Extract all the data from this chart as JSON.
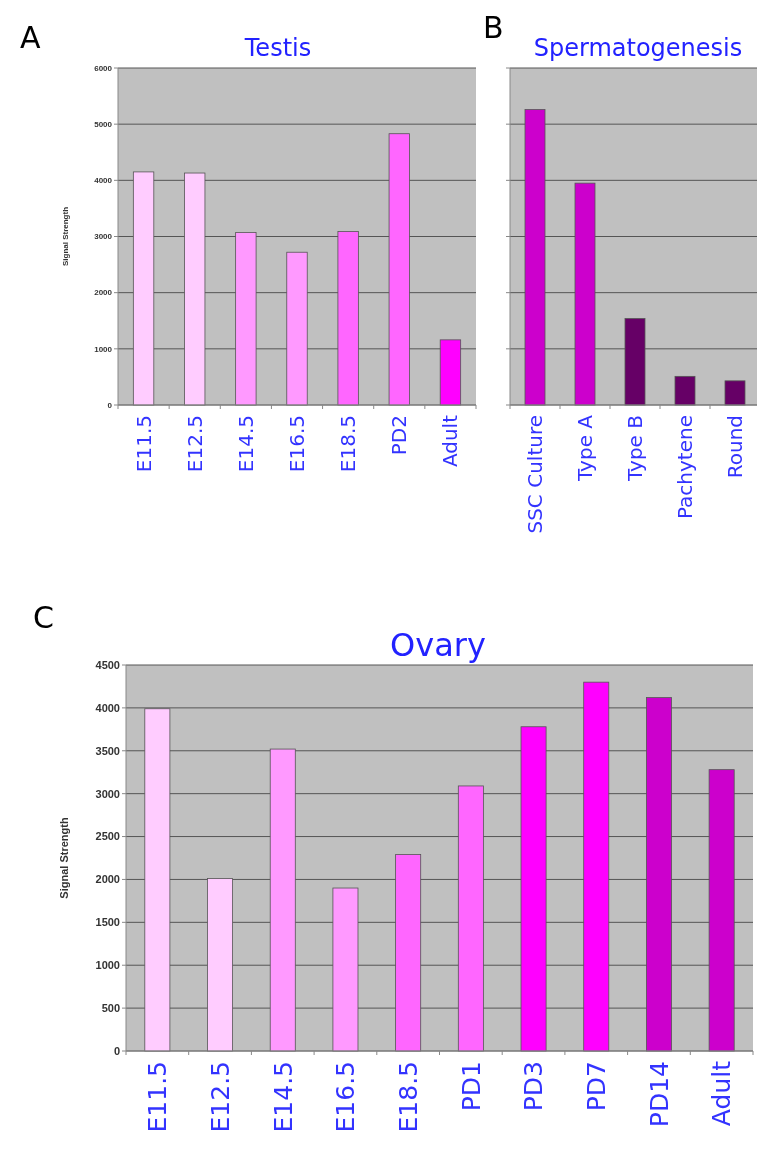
{
  "chart_data": [
    {
      "type": "bar",
      "title": "Testis",
      "ylabel": "Signal Strength",
      "annotations": [
        "A"
      ],
      "categories": [
        "E11.5",
        "E12.5",
        "E14.5",
        "E16.5",
        "E18.5",
        "PD2",
        "Adult"
      ],
      "values": [
        4150,
        4130,
        3070,
        2720,
        3090,
        4830,
        1160
      ],
      "colors": [
        "#ffccff",
        "#ffccff",
        "#ff99ff",
        "#ff99ff",
        "#ff66ff",
        "#ff66ff",
        "#ff00ff"
      ],
      "ylim": [
        0,
        6000
      ],
      "yticks": [
        0,
        1000,
        2000,
        3000,
        4000,
        5000,
        6000
      ],
      "grid": "y"
    },
    {
      "type": "bar",
      "title": "Spermatogenesis",
      "annotations": [
        "B"
      ],
      "categories": [
        "SSC Culture",
        "Type A",
        "Type B",
        "Pachytene",
        "Round"
      ],
      "values": [
        5260,
        3950,
        1540,
        510,
        430
      ],
      "colors": [
        "#cc00cc",
        "#cc00cc",
        "#660066",
        "#660066",
        "#660066"
      ],
      "ylim": [
        0,
        6000
      ],
      "yticks": [
        0,
        1000,
        2000,
        3000,
        4000,
        5000,
        6000
      ],
      "grid": "y",
      "tick_labels": "x"
    },
    {
      "type": "bar",
      "title": "Ovary",
      "ylabel": "Signal Strength",
      "annotations": [
        "C"
      ],
      "categories": [
        "E11.5",
        "E12.5",
        "E14.5",
        "E16.5",
        "E18.5",
        "PD1",
        "PD3",
        "PD7",
        "PD14",
        "Adult"
      ],
      "values": [
        3990,
        2010,
        3520,
        1900,
        2290,
        3090,
        3780,
        4300,
        4120,
        3280
      ],
      "colors": [
        "#ffccff",
        "#ffccff",
        "#ff99ff",
        "#ff99ff",
        "#ff66ff",
        "#ff66ff",
        "#ff00ff",
        "#ff00ff",
        "#cc00cc",
        "#cc00cc"
      ],
      "ylim": [
        0,
        4500
      ],
      "yticks": [
        0,
        500,
        1000,
        1500,
        2000,
        2500,
        3000,
        3500,
        4000,
        4500
      ],
      "grid": "y"
    }
  ]
}
